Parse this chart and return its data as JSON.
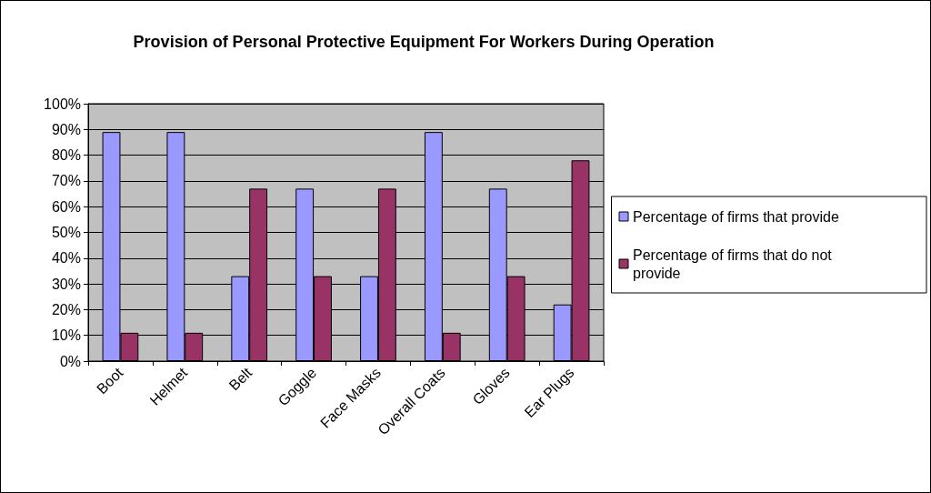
{
  "chart_data": {
    "type": "bar",
    "title": "Provision of Personal Protective Equipment For Workers During Operation",
    "categories": [
      "Boot",
      "Helmet",
      "Belt",
      "Goggle",
      "Face Masks",
      "Overall Coats",
      "Gloves",
      "Ear Plugs"
    ],
    "series": [
      {
        "name": "Percentage of firms that provide",
        "color": "#9999ff",
        "values": [
          89,
          89,
          33,
          67,
          33,
          89,
          67,
          22
        ]
      },
      {
        "name": "Percentage of firms that do not provide",
        "color": "#993366",
        "values": [
          11,
          11,
          67,
          33,
          67,
          11,
          33,
          78
        ]
      }
    ],
    "ylim": [
      0,
      100
    ],
    "yticks": [
      {
        "value": 0,
        "label": "0%"
      },
      {
        "value": 10,
        "label": "10%"
      },
      {
        "value": 20,
        "label": "20%"
      },
      {
        "value": 30,
        "label": "30%"
      },
      {
        "value": 40,
        "label": "40%"
      },
      {
        "value": 50,
        "label": "50%"
      },
      {
        "value": 60,
        "label": "60%"
      },
      {
        "value": 70,
        "label": "70%"
      },
      {
        "value": 80,
        "label": "80%"
      },
      {
        "value": 90,
        "label": "90%"
      },
      {
        "value": 100,
        "label": "100%"
      }
    ],
    "grid": "y",
    "legend": "right"
  }
}
